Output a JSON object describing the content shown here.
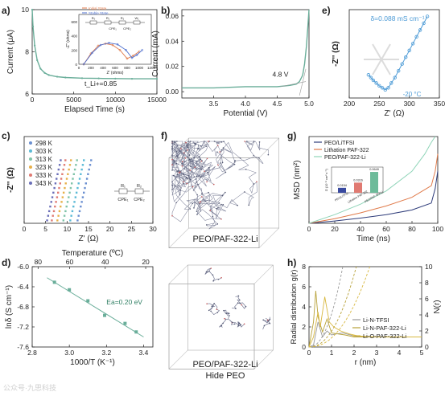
{
  "panel_letters": [
    "a)",
    "b)",
    "c)",
    "d)",
    "e)",
    "f)",
    "g)",
    "h)"
  ],
  "watermark": "公众号·九思科技",
  "colors": {
    "teal": "#6aae9a",
    "blue": "#4d9bd6",
    "navy": "#2e3c7a",
    "orange": "#e69a3c",
    "green": "#8fd4b8",
    "grey": "#9a9a9a",
    "olive": "#b8a23a",
    "gold": "#d8b840",
    "lightblue": "#a9d4ea"
  },
  "chart_data": [
    {
      "id": "a",
      "type": "line",
      "xlabel": "Elapsed Time (s)",
      "ylabel": "Current (μA)",
      "xlim": [
        0,
        15000
      ],
      "ylim": [
        6,
        10
      ],
      "xticks": [
        0,
        5000,
        10000,
        15000
      ],
      "yticks": [
        6,
        8,
        10
      ],
      "annotation": "t_Li+=0.85",
      "series": [
        {
          "x": [
            0,
            100,
            300,
            600,
            1000,
            1500,
            2000,
            3000,
            4000,
            6000,
            8000,
            10000,
            12000,
            15000
          ],
          "y": [
            10.0,
            9.2,
            8.3,
            7.6,
            7.2,
            7.0,
            6.9,
            6.82,
            6.78,
            6.75,
            6.74,
            6.73,
            6.72,
            6.72
          ]
        }
      ],
      "inset": {
        "legend": [
          "Initial State",
          "Stable State"
        ],
        "xlabel": "Z' (ohms)",
        "ylabel": "-Z'' (ohms)",
        "xticks": [
          0,
          200,
          400,
          600,
          800,
          1000,
          1200
        ],
        "yticks": [
          0,
          200,
          400,
          600
        ],
        "circuit": [
          "R₀",
          "R₁",
          "R₂",
          "W₁",
          "CPE₁",
          "CPE₂"
        ],
        "series": [
          {
            "name": "Initial State",
            "x": [
              80,
              200,
              320,
              440,
              560,
              680,
              800,
              900,
              1000
            ],
            "y": [
              0,
              150,
              260,
              290,
              270,
              200,
              80,
              120,
              180
            ]
          },
          {
            "name": "Stable State",
            "x": [
              80,
              220,
              360,
              500,
              640,
              780,
              880,
              960,
              1050
            ],
            "y": [
              0,
              160,
              270,
              300,
              280,
              200,
              90,
              130,
              200
            ]
          }
        ]
      }
    },
    {
      "id": "b",
      "type": "line",
      "xlabel": "Potential (V)",
      "ylabel": "Current (mA)",
      "xlim": [
        3.0,
        5.0
      ],
      "ylim": [
        -0.005,
        0.065
      ],
      "xticks": [
        3.5,
        4.0,
        4.5,
        5.0
      ],
      "yticks": [
        0.0,
        0.02,
        0.04,
        0.06
      ],
      "annotation": "4.8 V",
      "series": [
        {
          "x": [
            3.0,
            3.5,
            4.0,
            4.5,
            4.7,
            4.8,
            4.85,
            4.9,
            4.93,
            4.96,
            4.98,
            5.0
          ],
          "y": [
            0.003,
            0.003,
            0.004,
            0.004,
            0.005,
            0.006,
            0.008,
            0.013,
            0.022,
            0.036,
            0.05,
            0.065
          ]
        }
      ]
    },
    {
      "id": "e",
      "type": "scatter",
      "xlabel": "Z' (Ω)",
      "ylabel": "-Z'' (Ω)",
      "xlim": [
        200,
        350
      ],
      "ylim": [
        0,
        130
      ],
      "xticks": [
        200,
        250,
        300,
        350
      ],
      "annotation_top": "δ=0.088 mS cm⁻¹",
      "annotation_bottom": "-20 °C",
      "series": [
        {
          "x": [
            232,
            236,
            240,
            245,
            250,
            255,
            260,
            265,
            270,
            276,
            282,
            288,
            294,
            300,
            306,
            312,
            318,
            324,
            330
          ],
          "y": [
            34,
            30,
            26,
            22,
            18,
            15,
            12,
            15,
            22,
            30,
            40,
            50,
            60,
            70,
            80,
            90,
            100,
            110,
            120
          ]
        }
      ]
    },
    {
      "id": "c",
      "type": "scatter",
      "xlabel": "Z' (Ω)",
      "ylabel": "-Z'' (Ω)",
      "xlim": [
        0,
        30
      ],
      "ylim": [
        0,
        30
      ],
      "xticks": [
        0,
        5,
        10,
        15,
        20,
        25,
        30
      ],
      "circuit": [
        "R₁",
        "R₂",
        "CPE₁",
        "CPE₂"
      ],
      "series": [
        {
          "name": "298 K",
          "color": "#6a8fd0",
          "x0": 13.5,
          "slope": 2.3
        },
        {
          "name": "303 K",
          "color": "#5bbad6",
          "x0": 11.8,
          "slope": 2.3
        },
        {
          "name": "313 K",
          "color": "#7fc3a8",
          "x0": 10.2,
          "slope": 2.3
        },
        {
          "name": "323 K",
          "color": "#e7b04a",
          "x0": 8.8,
          "slope": 2.3
        },
        {
          "name": "333 K",
          "color": "#e07a72",
          "x0": 7.5,
          "slope": 2.3
        },
        {
          "name": "343 K",
          "color": "#6b6fb8",
          "x0": 6.4,
          "slope": 2.3
        }
      ]
    },
    {
      "id": "d",
      "type": "scatter",
      "xlabel": "1000/T (K⁻¹)",
      "x2label": "Temperature (ºC)",
      "ylabel": "lnδ (S cm⁻¹)",
      "xlim": [
        2.8,
        3.45
      ],
      "ylim": [
        -7.6,
        -6.0
      ],
      "xticks": [
        2.8,
        3.0,
        3.2,
        3.4
      ],
      "x2ticks": [
        80,
        60,
        40,
        20
      ],
      "yticks": [
        -6.0,
        -6.4,
        -6.8,
        -7.2,
        -7.6
      ],
      "annotation": "Ea=0.20 eV",
      "x": [
        2.92,
        3.0,
        3.1,
        3.19,
        3.3,
        3.36
      ],
      "y": [
        -6.31,
        -6.46,
        -6.68,
        -6.97,
        -7.13,
        -7.3
      ]
    },
    {
      "id": "g",
      "type": "line",
      "xlabel": "Time (ns)",
      "ylabel": "MSD (nm²)",
      "xlim": [
        0,
        100
      ],
      "ylim": [
        0,
        15
      ],
      "xticks": [
        0,
        20,
        40,
        60,
        80,
        100
      ],
      "yticks": [
        0,
        5,
        10,
        15
      ],
      "series": [
        {
          "name": "PEO/LiTFSI",
          "color": "#2e3c7a",
          "x": [
            0,
            20,
            40,
            60,
            80,
            95,
            98,
            100
          ],
          "y": [
            0,
            0.4,
            0.9,
            1.5,
            2.3,
            3.5,
            6,
            9
          ]
        },
        {
          "name": "Lithation PAF-322",
          "color": "#e07a4a",
          "x": [
            0,
            20,
            40,
            60,
            80,
            95,
            98,
            100
          ],
          "y": [
            0,
            0.8,
            1.8,
            3.0,
            4.5,
            6.5,
            9,
            12
          ]
        },
        {
          "name": "PEO/PAF-322-Li",
          "color": "#8fd4b8",
          "x": [
            0,
            20,
            40,
            60,
            80,
            90,
            95,
            98
          ],
          "y": [
            0,
            1.5,
            3.3,
            5.6,
            9.0,
            12.0,
            14.0,
            15.0
          ]
        }
      ],
      "inset": {
        "ylabel": "D (10⁻⁸ cm² s⁻¹)",
        "categories": [
          "PEO/LiTFSI",
          "Lithation PAF-322",
          "PEO/PAF-322-Li"
        ],
        "values": [
          0.0154,
          0.0316,
          0.0649
        ],
        "value_labels": [
          "0.0154",
          "0.0316",
          "0.0649"
        ],
        "colors": [
          "#3a4aa0",
          "#e07a72",
          "#6dbb9a"
        ]
      }
    },
    {
      "id": "h",
      "type": "line",
      "xlabel": "r (nm)",
      "ylabel": "Radial distribution g(r)",
      "y2label": "N(r)",
      "xlim": [
        0,
        5
      ],
      "ylim": [
        0,
        8
      ],
      "y2lim": [
        0,
        10
      ],
      "xticks": [
        0,
        1,
        2,
        3,
        4,
        5
      ],
      "yticks": [
        0,
        2,
        4,
        6,
        8
      ],
      "y2ticks": [
        0,
        2,
        4,
        6,
        8,
        10
      ],
      "series": [
        {
          "name": "Li-N-TFSI",
          "color": "#9a9a9a",
          "x": [
            0,
            0.2,
            0.4,
            0.6,
            0.8,
            1.0,
            1.2,
            1.5,
            2.0,
            2.5,
            3,
            4,
            5
          ],
          "y": [
            0,
            0.2,
            2.5,
            1.0,
            1.6,
            1.2,
            1.3,
            1.4,
            1.1,
            1.0,
            1.0,
            1.0,
            1.0
          ]
        },
        {
          "name": "Li-N-PAF-322-Li",
          "color": "#b8a23a",
          "x": [
            0,
            0.2,
            0.3,
            0.4,
            0.6,
            0.8,
            1.0,
            1.3,
            1.6,
            2.0,
            3,
            4,
            5
          ],
          "y": [
            0,
            2.5,
            5.6,
            3.0,
            1.5,
            2.8,
            1.4,
            1.3,
            1.2,
            1.0,
            1.0,
            1.0,
            1.0
          ]
        },
        {
          "name": "Li-O-PAF-322-Li",
          "color": "#d8b840",
          "x": [
            0,
            0.2,
            0.4,
            0.5,
            0.7,
            0.9,
            1.1,
            1.4,
            1.8,
            2.2,
            3,
            4,
            5
          ],
          "y": [
            0,
            1.0,
            3.5,
            2.0,
            5.0,
            2.5,
            2.0,
            1.6,
            1.3,
            1.1,
            1.0,
            1.0,
            1.0
          ]
        }
      ]
    }
  ],
  "images": {
    "f": {
      "label": "PEO/PAF-322-Li"
    },
    "f2": {
      "label_line1": "PEO/PAF-322-Li",
      "label_line2": "Hide PEO"
    }
  }
}
